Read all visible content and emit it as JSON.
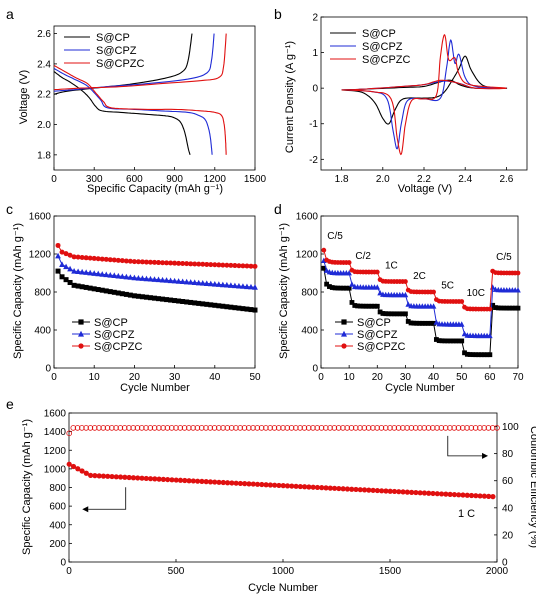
{
  "colors": {
    "black": "#000000",
    "blue": "#1f2bd6",
    "red": "#e01010"
  },
  "chart_data": [
    {
      "panel": "a",
      "type": "line",
      "xlabel": "Specific Capacity (mAh g⁻¹)",
      "ylabel": "Voltage (V)",
      "xlim": [
        0,
        1500
      ],
      "ylim": [
        1.7,
        2.65
      ],
      "xticks": [
        "0",
        "300",
        "600",
        "900",
        "1200",
        "1500"
      ],
      "yticks": [
        "1.8",
        "2.0",
        "2.2",
        "2.4",
        "2.6"
      ],
      "legend": {
        "position": "top-left",
        "entries": [
          "S@CP",
          "S@CPZ",
          "S@CPZC"
        ]
      },
      "series": [
        {
          "name": "S@CP",
          "color": "black",
          "discharge": [
            [
              0,
              2.35
            ],
            [
              60,
              2.31
            ],
            [
              120,
              2.28
            ],
            [
              200,
              2.23
            ],
            [
              260,
              2.18
            ],
            [
              310,
              2.12
            ],
            [
              360,
              2.09
            ],
            [
              500,
              2.08
            ],
            [
              650,
              2.07
            ],
            [
              800,
              2.06
            ],
            [
              880,
              2.05
            ],
            [
              940,
              2.02
            ],
            [
              975,
              1.95
            ],
            [
              1000,
              1.85
            ],
            [
              1015,
              1.8
            ]
          ],
          "charge": [
            [
              0,
              2.2
            ],
            [
              100,
              2.22
            ],
            [
              300,
              2.24
            ],
            [
              600,
              2.27
            ],
            [
              850,
              2.31
            ],
            [
              960,
              2.35
            ],
            [
              1000,
              2.42
            ],
            [
              1030,
              2.6
            ]
          ]
        },
        {
          "name": "S@CPZ",
          "color": "blue",
          "discharge": [
            [
              0,
              2.37
            ],
            [
              80,
              2.33
            ],
            [
              150,
              2.3
            ],
            [
              240,
              2.26
            ],
            [
              300,
              2.21
            ],
            [
              350,
              2.16
            ],
            [
              400,
              2.11
            ],
            [
              600,
              2.1
            ],
            [
              800,
              2.09
            ],
            [
              1000,
              2.08
            ],
            [
              1080,
              2.06
            ],
            [
              1130,
              2.03
            ],
            [
              1160,
              1.95
            ],
            [
              1175,
              1.85
            ],
            [
              1180,
              1.8
            ]
          ],
          "charge": [
            [
              0,
              2.22
            ],
            [
              150,
              2.23
            ],
            [
              400,
              2.25
            ],
            [
              700,
              2.27
            ],
            [
              1000,
              2.3
            ],
            [
              1140,
              2.34
            ],
            [
              1175,
              2.42
            ],
            [
              1195,
              2.6
            ]
          ]
        },
        {
          "name": "S@CPZC",
          "color": "red",
          "discharge": [
            [
              0,
              2.39
            ],
            [
              80,
              2.35
            ],
            [
              160,
              2.31
            ],
            [
              250,
              2.27
            ],
            [
              310,
              2.21
            ],
            [
              370,
              2.15
            ],
            [
              430,
              2.11
            ],
            [
              700,
              2.1
            ],
            [
              900,
              2.1
            ],
            [
              1100,
              2.09
            ],
            [
              1200,
              2.08
            ],
            [
              1250,
              2.06
            ],
            [
              1270,
              2.0
            ],
            [
              1280,
              1.9
            ],
            [
              1285,
              1.8
            ]
          ],
          "charge": [
            [
              0,
              2.23
            ],
            [
              200,
              2.24
            ],
            [
              500,
              2.25
            ],
            [
              800,
              2.27
            ],
            [
              1100,
              2.29
            ],
            [
              1230,
              2.31
            ],
            [
              1265,
              2.38
            ],
            [
              1285,
              2.6
            ]
          ]
        }
      ]
    },
    {
      "panel": "b",
      "type": "line",
      "xlabel": "Voltage (V)",
      "ylabel": "Current Density (A g⁻¹)",
      "xlim": [
        1.7,
        2.7
      ],
      "ylim": [
        -2.3,
        2.0
      ],
      "xticks": [
        "1.8",
        "2.0",
        "2.2",
        "2.4",
        "2.6"
      ],
      "yticks": [
        "-2",
        "-1",
        "0",
        "1",
        "2"
      ],
      "legend": {
        "position": "top-left",
        "entries": [
          "S@CP",
          "S@CPZ",
          "S@CPZC"
        ]
      },
      "series": [
        {
          "name": "S@CP",
          "color": "black",
          "points": [
            [
              1.8,
              -0.05
            ],
            [
              1.9,
              -0.12
            ],
            [
              1.96,
              -0.4
            ],
            [
              2.0,
              -0.85
            ],
            [
              2.03,
              -1.0
            ],
            [
              2.06,
              -0.6
            ],
            [
              2.1,
              -0.3
            ],
            [
              2.2,
              -0.28
            ],
            [
              2.26,
              -0.25
            ],
            [
              2.3,
              -0.1
            ],
            [
              2.34,
              0.25
            ],
            [
              2.37,
              0.55
            ],
            [
              2.4,
              0.9
            ],
            [
              2.43,
              0.5
            ],
            [
              2.48,
              0.1
            ],
            [
              2.55,
              0.0
            ],
            [
              2.6,
              0.0
            ],
            [
              2.45,
              0.0
            ],
            [
              2.38,
              0.08
            ],
            [
              2.33,
              0.22
            ],
            [
              2.28,
              0.18
            ],
            [
              2.2,
              0.05
            ],
            [
              2.1,
              0.02
            ],
            [
              1.9,
              -0.03
            ],
            [
              1.8,
              -0.05
            ]
          ]
        },
        {
          "name": "S@CPZ",
          "color": "blue",
          "points": [
            [
              1.8,
              -0.05
            ],
            [
              1.95,
              -0.1
            ],
            [
              2.02,
              -0.3
            ],
            [
              2.05,
              -1.2
            ],
            [
              2.07,
              -1.7
            ],
            [
              2.09,
              -1.0
            ],
            [
              2.12,
              -0.35
            ],
            [
              2.2,
              -0.3
            ],
            [
              2.28,
              -0.28
            ],
            [
              2.31,
              0.6
            ],
            [
              2.33,
              1.35
            ],
            [
              2.35,
              0.7
            ],
            [
              2.37,
              0.95
            ],
            [
              2.4,
              0.3
            ],
            [
              2.45,
              0.05
            ],
            [
              2.6,
              0.0
            ],
            [
              2.45,
              0.0
            ],
            [
              2.38,
              0.12
            ],
            [
              2.3,
              0.2
            ],
            [
              2.2,
              0.1
            ],
            [
              2.1,
              0.05
            ],
            [
              1.9,
              -0.03
            ],
            [
              1.8,
              -0.05
            ]
          ]
        },
        {
          "name": "S@CPZC",
          "color": "red",
          "points": [
            [
              1.8,
              -0.05
            ],
            [
              1.95,
              -0.1
            ],
            [
              2.04,
              -0.3
            ],
            [
              2.07,
              -1.4
            ],
            [
              2.09,
              -1.85
            ],
            [
              2.11,
              -1.0
            ],
            [
              2.14,
              -0.35
            ],
            [
              2.2,
              -0.3
            ],
            [
              2.26,
              -0.2
            ],
            [
              2.28,
              0.9
            ],
            [
              2.3,
              1.5
            ],
            [
              2.32,
              0.8
            ],
            [
              2.35,
              0.85
            ],
            [
              2.37,
              0.4
            ],
            [
              2.42,
              0.1
            ],
            [
              2.6,
              0.0
            ],
            [
              2.45,
              0.0
            ],
            [
              2.36,
              0.15
            ],
            [
              2.28,
              0.22
            ],
            [
              2.2,
              0.1
            ],
            [
              2.1,
              0.05
            ],
            [
              1.9,
              -0.03
            ],
            [
              1.8,
              -0.05
            ]
          ]
        }
      ]
    },
    {
      "panel": "c",
      "type": "scatter",
      "xlabel": "Cycle Number",
      "ylabel": "Specific Capacity (mAh g⁻¹)",
      "xlim": [
        0,
        50
      ],
      "ylim": [
        0,
        1600
      ],
      "xticks": [
        "0",
        "10",
        "20",
        "30",
        "40",
        "50"
      ],
      "yticks": [
        "0",
        "400",
        "800",
        "1200",
        "1600"
      ],
      "legend": {
        "position": "bottom-left",
        "entries": [
          "S@CP",
          "S@CPZ",
          "S@CPZC"
        ]
      },
      "series": [
        {
          "name": "S@CP",
          "color": "black",
          "marker": "square",
          "start": 1,
          "end": 50,
          "first": 1020,
          "second": 960,
          "y5": 870,
          "y20": 760,
          "y50": 610
        },
        {
          "name": "S@CPZ",
          "color": "blue",
          "marker": "triangle",
          "start": 1,
          "end": 50,
          "first": 1180,
          "second": 1090,
          "y5": 1020,
          "y20": 950,
          "y50": 850
        },
        {
          "name": "S@CPZC",
          "color": "red",
          "marker": "circle",
          "start": 1,
          "end": 50,
          "first": 1290,
          "second": 1220,
          "y5": 1170,
          "y20": 1120,
          "y50": 1070
        }
      ]
    },
    {
      "panel": "d",
      "type": "scatter",
      "xlabel": "Cycle Number",
      "ylabel": "Specific Capacity (mAh g⁻¹)",
      "xlim": [
        0,
        70
      ],
      "ylim": [
        0,
        1600
      ],
      "xticks": [
        "0",
        "10",
        "20",
        "30",
        "40",
        "50",
        "60",
        "70"
      ],
      "yticks": [
        "0",
        "400",
        "800",
        "1200",
        "1600"
      ],
      "legend": {
        "position": "bottom-left",
        "entries": [
          "S@CP",
          "S@CPZ",
          "S@CPZC"
        ]
      },
      "rate_labels": [
        "C/5",
        "C/2",
        "1C",
        "2C",
        "5C",
        "10C",
        "C/5"
      ],
      "series": [
        {
          "name": "S@CP",
          "color": "black",
          "marker": "square",
          "levels": [
            [
              1050,
              840
            ],
            [
              690,
              650
            ],
            [
              590,
              570
            ],
            [
              490,
              470
            ],
            [
              300,
              285
            ],
            [
              160,
              140
            ],
            [
              660,
              630
            ]
          ]
        },
        {
          "name": "S@CPZ",
          "color": "blue",
          "marker": "triangle",
          "levels": [
            [
              1130,
              1000
            ],
            [
              880,
              850
            ],
            [
              790,
              770
            ],
            [
              670,
              650
            ],
            [
              480,
              460
            ],
            [
              360,
              340
            ],
            [
              850,
              820
            ]
          ]
        },
        {
          "name": "S@CPZC",
          "color": "red",
          "marker": "circle",
          "levels": [
            [
              1240,
              1110
            ],
            [
              1030,
              1010
            ],
            [
              930,
              910
            ],
            [
              820,
              800
            ],
            [
              720,
              700
            ],
            [
              640,
              620
            ],
            [
              1020,
              1000
            ]
          ]
        }
      ]
    },
    {
      "panel": "e",
      "type": "scatter",
      "xlabel": "Cycle Number",
      "ylabel": "Specific Capacity (mAh g⁻¹)",
      "y2label": "Coulombic Efficiency (%)",
      "xlim": [
        0,
        2000
      ],
      "ylim": [
        0,
        1600
      ],
      "y2lim": [
        0,
        110
      ],
      "xticks": [
        "0",
        "500",
        "1000",
        "1500",
        "2000"
      ],
      "yticks": [
        "0",
        "200",
        "400",
        "600",
        "800",
        "1000",
        "1200",
        "1400",
        "1600"
      ],
      "y2ticks": [
        "0",
        "20",
        "40",
        "60",
        "80",
        "100"
      ],
      "annotation": "1 C",
      "series": [
        {
          "name": "Specific Capacity",
          "color": "red",
          "marker": "circle",
          "axis": "left",
          "first": 1050,
          "y100": 930,
          "y500": 880,
          "y1000": 820,
          "y1500": 760,
          "y2000": 700
        },
        {
          "name": "Coulombic Efficiency",
          "color": "red",
          "marker": "open-circle",
          "axis": "right",
          "value": 99,
          "first": 95
        }
      ]
    }
  ]
}
